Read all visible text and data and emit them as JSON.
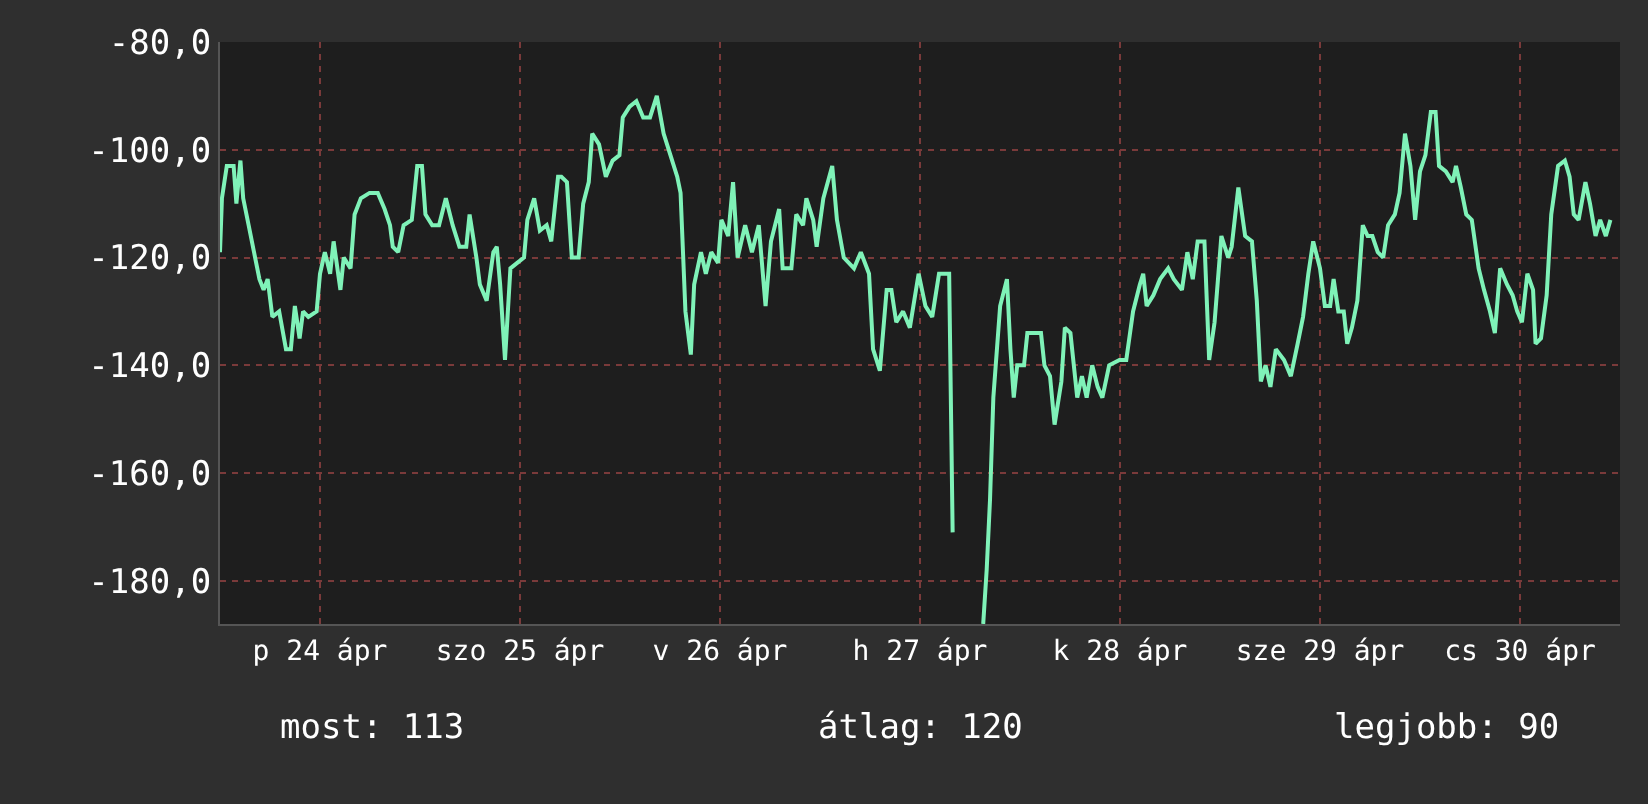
{
  "chart_data": {
    "type": "line",
    "x": [
      "--04-24T00:00",
      "--04-24T00:14",
      "--04-24T00:49",
      "--04-24T01:38",
      "--04-24T01:58",
      "--04-24T02:27",
      "--04-24T02:47",
      "--04-24T03:26",
      "--04-24T04:05",
      "--04-24T04:44",
      "--04-24T05:14",
      "--04-24T05:43",
      "--04-24T06:17",
      "--04-24T07:06",
      "--04-24T07:55",
      "--04-24T08:30",
      "--04-24T08:59",
      "--04-24T09:33",
      "--04-24T09:58",
      "--04-24T10:36",
      "--04-24T11:36",
      "--04-24T12:00",
      "--04-24T12:35",
      "--04-24T13:13",
      "--04-24T13:38",
      "--04-24T14:27",
      "--04-24T14:51",
      "--04-24T15:40",
      "--04-24T16:09",
      "--04-24T16:54",
      "--04-24T17:57",
      "--04-24T18:56",
      "--04-24T19:45",
      "--04-24T20:24",
      "--04-24T20:44",
      "--04-24T21:23",
      "--04-24T22:02",
      "--04-24T23:01",
      "--04-24T23:40",
      "--04-25T00:14",
      "--04-25T00:39",
      "--04-25T01:28",
      "--04-25T02:17",
      "--04-25T03:06",
      "--04-25T03:55",
      "--04-25T04:44",
      "--04-25T05:33",
      "--04-25T05:57",
      "--04-25T06:46",
      "--04-25T07:11",
      "--04-25T08:00",
      "--04-25T08:48",
      "--04-25T09:13",
      "--04-25T09:37",
      "--04-25T10:12",
      "--04-25T10:51",
      "--04-25T11:40",
      "--04-25T12:29",
      "--04-25T12:53",
      "--04-25T13:42",
      "--04-25T14:23",
      "--04-25T15:12",
      "--04-25T15:45",
      "--04-25T16:34",
      "--04-25T16:58",
      "--04-25T17:38",
      "--04-25T18:13",
      "--04-25T19:02",
      "--04-25T19:35",
      "--04-25T20:15",
      "--04-25T20:40",
      "--04-25T21:29",
      "--04-25T22:18",
      "--04-25T23:07",
      "--04-25T23:56",
      "--04-26T00:20",
      "--04-26T01:09",
      "--04-26T01:58",
      "--04-26T02:47",
      "--04-26T03:36",
      "--04-26T04:25",
      "--04-26T05:14",
      "--04-26T06:03",
      "--04-26T06:52",
      "--04-26T07:16",
      "--04-26T07:51",
      "--04-26T08:30",
      "--04-26T08:54",
      "--04-26T09:43",
      "--04-26T10:18",
      "--04-26T10:57",
      "--04-26T11:46",
      "--04-26T12:10",
      "--04-26T12:59",
      "--04-26T13:34",
      "--04-26T14:07",
      "--04-26T15:01",
      "--04-26T15:50",
      "--04-26T16:39",
      "--04-26T17:28",
      "--04-26T18:07",
      "--04-26T19:06",
      "--04-26T19:31",
      "--04-26T20:34",
      "--04-26T21:09",
      "--04-26T21:58",
      "--04-26T22:22",
      "--04-26T23:11",
      "--04-26T23:36",
      "--04-27T00:24",
      "--04-27T01:28",
      "--04-27T02:02",
      "--04-27T02:51",
      "--04-27T04:05",
      "--04-27T04:54",
      "--04-27T05:53",
      "--04-27T06:22",
      "--04-27T07:11",
      "--04-27T08:00",
      "--04-27T08:34",
      "--04-27T09:09",
      "--04-27T09:58",
      "--04-27T10:47",
      "--04-27T11:50",
      "--04-27T12:39",
      "--04-27T13:28",
      "--04-27T14:17",
      "--04-27T15:30",
      "--04-27T15:55",
      "--04-27T17:46",
      "--04-27T19:35",
      "--04-27T20:00",
      "--04-27T20:24",
      "--04-27T20:48",
      "--04-27T21:37",
      "--04-27T22:26",
      "--04-27T22:51",
      "--04-27T23:15",
      "--04-27T23:40",
      "--04-28T00:29",
      "--04-28T00:53",
      "--04-28T02:31",
      "--04-28T02:56",
      "--04-28T03:36",
      "--04-28T04:09",
      "--04-28T04:58",
      "--04-28T05:23",
      "--04-28T06:03",
      "--04-28T06:52",
      "--04-28T07:26",
      "--04-28T08:00",
      "--04-28T08:40",
      "--04-28T09:19",
      "--04-28T09:53",
      "--04-28T10:42",
      "--04-28T11:56",
      "--04-28T12:45",
      "--04-28T13:34",
      "--04-28T14:23",
      "--04-28T14:47",
      "--04-28T15:12",
      "--04-28T16:00",
      "--04-28T16:49",
      "--04-28T17:47",
      "--04-28T18:27",
      "--04-28T19:26",
      "--04-28T20:05",
      "--04-28T20:44",
      "--04-28T21:19",
      "--04-28T22:08",
      "--04-28T22:42",
      "--04-28T23:21",
      "--04-29T00:10",
      "--04-29T00:59",
      "--04-29T01:24",
      "--04-29T02:12",
      "--04-29T03:01",
      "--04-29T03:50",
      "--04-29T04:25",
      "--04-29T04:54",
      "--04-29T05:28",
      "--04-29T06:03",
      "--04-29T06:42",
      "--04-29T07:41",
      "--04-29T08:30",
      "--04-29T09:19",
      "--04-29T09:58",
      "--04-29T10:36",
      "--04-29T11:11",
      "--04-29T12:00",
      "--04-29T12:35",
      "--04-29T13:13",
      "--04-29T13:38",
      "--04-29T14:12",
      "--04-29T14:51",
      "--04-29T15:16",
      "--04-29T15:50",
      "--04-29T16:29",
      "--04-29T17:08",
      "--04-29T17:43",
      "--04-29T18:17",
      "--04-29T18:56",
      "--04-29T19:35",
      "--04-29T20:10",
      "--04-29T20:59",
      "--04-29T21:33",
      "--04-29T22:12",
      "--04-29T22:51",
      "--04-29T23:25",
      "--04-30T00:00",
      "--04-30T00:39",
      "--04-30T01:18",
      "--04-30T01:52",
      "--04-30T02:17",
      "--04-30T03:06",
      "--04-30T03:55",
      "--04-30T04:19",
      "--04-30T04:54",
      "--04-30T05:33",
      "--04-30T06:13",
      "--04-30T07:02",
      "--04-30T07:41",
      "--04-30T08:24",
      "--04-30T08:59",
      "--04-30T09:37",
      "--04-30T10:26",
      "--04-30T11:07",
      "--04-30T11:40",
      "--04-30T12:14",
      "--04-30T12:53",
      "--04-30T13:34",
      "--04-30T13:52",
      "--04-30T14:31",
      "--04-30T15:12",
      "--04-30T15:45",
      "--04-30T16:34",
      "--04-30T17:23",
      "--04-30T17:57",
      "--04-30T18:27",
      "--04-30T19:02",
      "--04-30T19:51",
      "--04-30T20:24",
      "--04-30T21:04",
      "--04-30T21:37",
      "--04-30T22:18",
      "--04-30T22:51"
    ],
    "series": [
      {
        "color": "#7ff2b8",
        "values": [
          -119,
          -109,
          -103,
          -103,
          -110,
          -102,
          -109,
          -114,
          -119,
          -124,
          -126,
          -124,
          -131,
          -130,
          -137,
          -137,
          -129,
          -135,
          -130,
          -131,
          -130,
          -123,
          -119,
          -123,
          -117,
          -126,
          -120,
          -122,
          -112,
          -109,
          -108,
          -108,
          -111,
          -114,
          -118,
          -119,
          -114,
          -113,
          -103,
          -103,
          -112,
          -114,
          -114,
          -109,
          -114,
          -118,
          -118,
          -112,
          -120,
          -125,
          -128,
          -119,
          -118,
          -125,
          -139,
          -122,
          -121,
          -120,
          -113,
          -109,
          -115,
          -114,
          -117,
          -105,
          -105,
          -106,
          -120,
          -120,
          -110,
          -106,
          -97,
          -99,
          -105,
          -102,
          -101,
          -94,
          -92,
          -91,
          -94,
          -94,
          -90,
          -97,
          -101,
          -105,
          -108,
          -130,
          -138,
          -125,
          -119,
          -123,
          -119,
          -121,
          -113,
          -116,
          -106,
          -120,
          -114,
          -119,
          -114,
          -129,
          -117,
          -111,
          -122,
          -122,
          -112,
          -114,
          -109,
          -113,
          -118,
          -109,
          -103,
          -113,
          -120,
          -122,
          -119,
          -123,
          -137,
          -141,
          -126,
          -126,
          -132,
          -130,
          -133,
          -123,
          -129,
          -131,
          -123,
          -123,
          -171,
          null,
          -188,
          -178,
          -165,
          -146,
          -129,
          -124,
          -137,
          -146,
          -140,
          -140,
          -134,
          -134,
          -140,
          -142,
          -151,
          -143,
          -133,
          -134,
          -146,
          -142,
          -146,
          -140,
          -144,
          -146,
          -140,
          -139,
          -139,
          -130,
          -125,
          -123,
          -129,
          -127,
          -124,
          -122,
          -124,
          -126,
          -119,
          -124,
          -117,
          -117,
          -139,
          -132,
          -116,
          -120,
          -118,
          -107,
          -116,
          -117,
          -128,
          -143,
          -140,
          -144,
          -137,
          -139,
          -142,
          -136,
          -131,
          -123,
          -117,
          -122,
          -129,
          -129,
          -124,
          -130,
          -130,
          -136,
          -133,
          -128,
          -114,
          -116,
          -116,
          -119,
          -120,
          -114,
          -112,
          -108,
          -97,
          -103,
          -113,
          -104,
          -101,
          -93,
          -93,
          -103,
          -104,
          -106,
          -103,
          -107,
          -112,
          -113,
          -122,
          -126,
          -130,
          -134,
          -122,
          -125,
          -127,
          -130,
          -132,
          -123,
          -126,
          -136,
          -135,
          -127,
          -112,
          -103,
          -102,
          -105,
          -112,
          -113,
          -106,
          -110,
          -116,
          -113,
          -116,
          -113
        ]
      }
    ],
    "xlim": [
      "--04-24T00:00",
      "--05-01T00:00"
    ],
    "xticks": [
      {
        "value": "--04-24T12:00",
        "label": "p 24 ápr"
      },
      {
        "value": "--04-25T12:00",
        "label": "szo 25 ápr"
      },
      {
        "value": "--04-26T12:00",
        "label": "v 26 ápr"
      },
      {
        "value": "--04-27T12:00",
        "label": "h 27 ápr"
      },
      {
        "value": "--04-28T12:00",
        "label": "k 28 ápr"
      },
      {
        "value": "--04-29T12:00",
        "label": "sze 29 ápr"
      },
      {
        "value": "--04-30T12:00",
        "label": "cs 30 ápr"
      }
    ],
    "ylim": [
      -188,
      -80
    ],
    "yticks": [
      {
        "value": -80,
        "label": "-80,0"
      },
      {
        "value": -100,
        "label": "-100,0"
      },
      {
        "value": -120,
        "label": "-120,0"
      },
      {
        "value": -140,
        "label": "-140,0"
      },
      {
        "value": -160,
        "label": "-160,0"
      },
      {
        "value": -180,
        "label": "-180,0"
      }
    ],
    "grid": true,
    "annotations": [
      "most: 113",
      "átlag: 120",
      "legjobb: 90"
    ]
  }
}
